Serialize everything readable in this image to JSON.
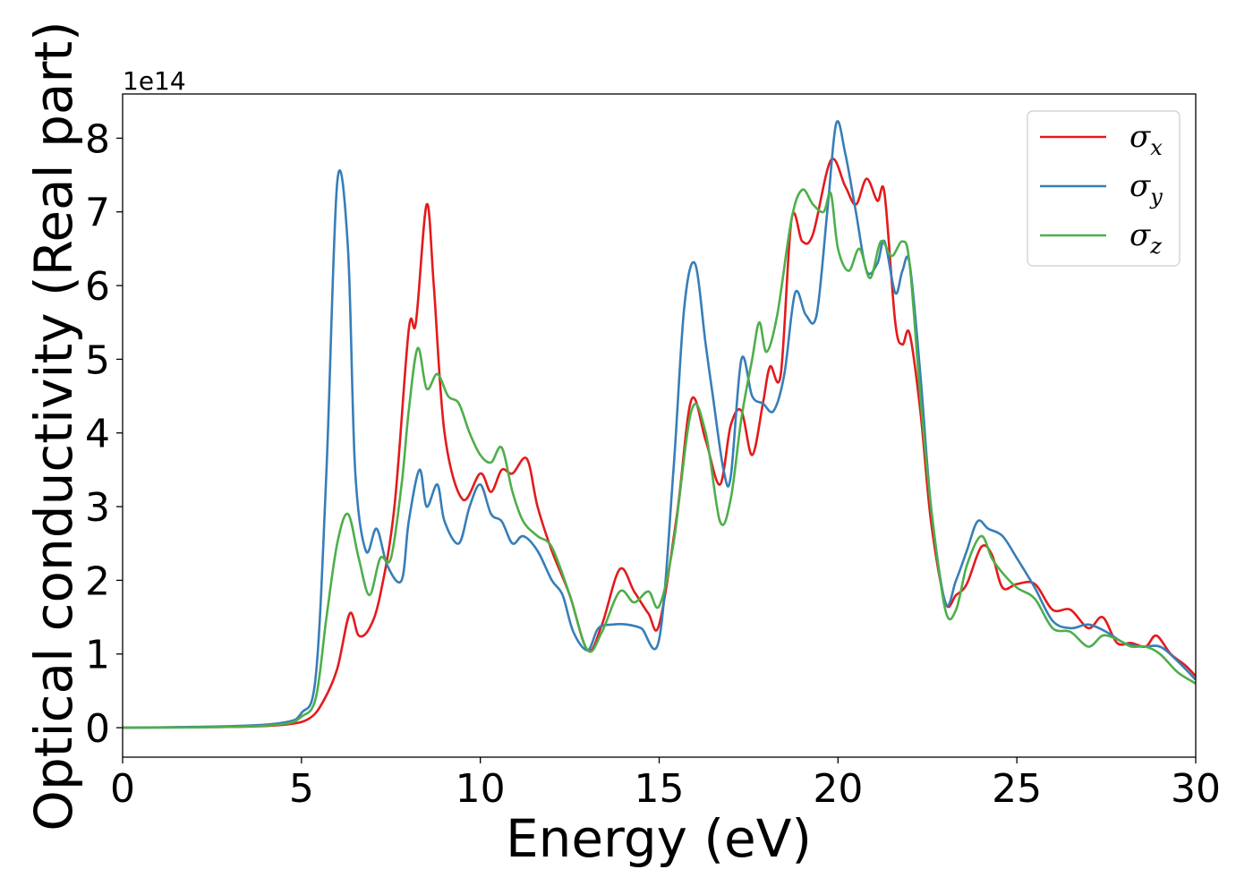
{
  "chart_data": {
    "type": "line",
    "title": "",
    "xlabel": "Energy (eV)",
    "ylabel": "Optical conductivity (Real part)",
    "y_offset_label": "1e14",
    "xlim": [
      0,
      30
    ],
    "ylim": [
      -0.4,
      8.6
    ],
    "xticks": [
      0,
      5,
      10,
      15,
      20,
      25,
      30
    ],
    "xtick_labels": [
      "0",
      "5",
      "10",
      "15",
      "20",
      "25",
      "30"
    ],
    "yticks": [
      0,
      1,
      2,
      3,
      4,
      5,
      6,
      7,
      8
    ],
    "ytick_labels": [
      "0",
      "1",
      "2",
      "3",
      "4",
      "5",
      "6",
      "7",
      "8"
    ],
    "grid": false,
    "legend_position": "top-right",
    "series": [
      {
        "name": "σx",
        "symbol": "σ",
        "subscript": "x",
        "color": "#e41a1c",
        "x": [
          0,
          3,
          4.5,
          5.2,
          5.6,
          6.0,
          6.35,
          6.6,
          6.9,
          7.2,
          7.6,
          8.0,
          8.2,
          8.5,
          8.7,
          9.0,
          9.5,
          10.0,
          10.3,
          10.6,
          10.9,
          11.3,
          11.6,
          12.0,
          12.5,
          13.0,
          13.4,
          13.9,
          14.3,
          14.7,
          15.0,
          15.5,
          15.9,
          16.3,
          16.7,
          17.0,
          17.3,
          17.6,
          17.9,
          18.1,
          18.4,
          18.7,
          19.0,
          19.3,
          19.8,
          20.2,
          20.5,
          20.8,
          21.1,
          21.3,
          21.6,
          21.8,
          22.0,
          22.3,
          22.6,
          23.0,
          23.3,
          23.6,
          24.0,
          24.3,
          24.6,
          25.0,
          25.5,
          26.0,
          26.5,
          27.0,
          27.4,
          27.8,
          28.2,
          28.6,
          28.9,
          29.3,
          29.7,
          30.0
        ],
        "y": [
          0.0,
          0.01,
          0.04,
          0.12,
          0.35,
          0.8,
          1.55,
          1.25,
          1.35,
          1.8,
          3.0,
          5.4,
          5.5,
          7.1,
          6.0,
          4.0,
          3.1,
          3.45,
          3.2,
          3.5,
          3.45,
          3.65,
          3.0,
          2.4,
          1.8,
          1.05,
          1.4,
          2.15,
          1.85,
          1.55,
          1.4,
          2.9,
          4.45,
          3.9,
          3.3,
          4.1,
          4.3,
          3.7,
          4.4,
          4.9,
          4.8,
          6.9,
          6.6,
          6.7,
          7.7,
          7.35,
          7.1,
          7.45,
          7.15,
          7.25,
          5.5,
          5.2,
          5.35,
          4.3,
          2.8,
          1.7,
          1.8,
          1.95,
          2.45,
          2.35,
          1.9,
          1.95,
          1.95,
          1.6,
          1.6,
          1.35,
          1.5,
          1.15,
          1.15,
          1.1,
          1.25,
          1.0,
          0.85,
          0.7
        ]
      },
      {
        "name": "σy",
        "symbol": "σ",
        "subscript": "y",
        "color": "#377eb8",
        "x": [
          0,
          3,
          4.5,
          5.0,
          5.4,
          5.7,
          6.0,
          6.3,
          6.5,
          6.8,
          7.1,
          7.4,
          7.8,
          8.0,
          8.3,
          8.5,
          8.8,
          9.0,
          9.4,
          9.7,
          10.0,
          10.3,
          10.6,
          10.9,
          11.2,
          11.6,
          12.0,
          12.3,
          12.6,
          13.0,
          13.3,
          13.7,
          14.1,
          14.5,
          15.0,
          15.4,
          15.7,
          16.0,
          16.3,
          16.5,
          16.8,
          17.0,
          17.3,
          17.6,
          17.9,
          18.2,
          18.5,
          18.8,
          19.1,
          19.4,
          19.7,
          19.95,
          20.2,
          20.5,
          20.8,
          21.1,
          21.3,
          21.6,
          21.8,
          22.0,
          22.3,
          22.6,
          23.0,
          23.3,
          23.6,
          23.9,
          24.2,
          24.6,
          25.0,
          25.5,
          26.0,
          26.5,
          27.0,
          27.5,
          28.0,
          28.5,
          29.0,
          29.5,
          30.0
        ],
        "y": [
          0.0,
          0.02,
          0.07,
          0.2,
          0.7,
          3.5,
          7.4,
          6.5,
          3.5,
          2.4,
          2.7,
          2.2,
          2.0,
          2.8,
          3.5,
          3.0,
          3.3,
          2.8,
          2.5,
          3.0,
          3.3,
          2.9,
          2.8,
          2.5,
          2.6,
          2.4,
          2.0,
          1.8,
          1.3,
          1.05,
          1.35,
          1.4,
          1.4,
          1.35,
          1.2,
          3.5,
          5.7,
          6.3,
          5.2,
          4.5,
          3.5,
          3.4,
          5.0,
          4.5,
          4.4,
          4.3,
          4.8,
          5.9,
          5.6,
          5.6,
          7.0,
          8.2,
          7.8,
          7.0,
          6.2,
          6.3,
          6.6,
          5.9,
          6.2,
          6.3,
          4.8,
          3.0,
          1.7,
          2.0,
          2.4,
          2.8,
          2.7,
          2.6,
          2.3,
          1.9,
          1.45,
          1.35,
          1.4,
          1.3,
          1.15,
          1.1,
          1.1,
          0.9,
          0.65
        ]
      },
      {
        "name": "σz",
        "symbol": "σ",
        "subscript": "z",
        "color": "#4daf4a",
        "x": [
          0,
          3,
          4.5,
          5.0,
          5.4,
          5.7,
          6.0,
          6.3,
          6.6,
          6.9,
          7.2,
          7.5,
          7.8,
          8.0,
          8.25,
          8.5,
          8.8,
          9.1,
          9.4,
          9.7,
          10.0,
          10.3,
          10.6,
          10.9,
          11.2,
          11.6,
          12.0,
          12.5,
          13.0,
          13.4,
          13.9,
          14.3,
          14.7,
          15.0,
          15.4,
          15.9,
          16.3,
          16.7,
          17.0,
          17.3,
          17.6,
          17.8,
          18.0,
          18.3,
          18.7,
          19.0,
          19.3,
          19.6,
          19.8,
          20.0,
          20.3,
          20.6,
          20.9,
          21.2,
          21.5,
          21.8,
          22.0,
          22.3,
          22.6,
          23.0,
          23.3,
          23.6,
          24.0,
          24.3,
          24.6,
          25.0,
          25.5,
          26.0,
          26.5,
          27.0,
          27.4,
          27.8,
          28.2,
          28.6,
          29.0,
          29.5,
          30.0
        ],
        "y": [
          0.0,
          0.01,
          0.05,
          0.15,
          0.4,
          1.5,
          2.5,
          2.9,
          2.3,
          1.8,
          2.3,
          2.3,
          3.3,
          4.3,
          5.15,
          4.6,
          4.8,
          4.5,
          4.4,
          4.0,
          3.7,
          3.6,
          3.8,
          3.2,
          2.8,
          2.6,
          2.45,
          1.8,
          1.05,
          1.3,
          1.85,
          1.7,
          1.85,
          1.65,
          2.5,
          4.3,
          4.0,
          2.8,
          3.1,
          4.2,
          5.0,
          5.5,
          5.1,
          5.6,
          6.9,
          7.3,
          7.1,
          7.0,
          7.25,
          6.5,
          6.2,
          6.5,
          6.1,
          6.6,
          6.4,
          6.6,
          6.3,
          4.5,
          3.0,
          1.6,
          1.6,
          2.2,
          2.6,
          2.3,
          2.1,
          1.9,
          1.75,
          1.35,
          1.3,
          1.1,
          1.25,
          1.2,
          1.1,
          1.1,
          1.0,
          0.75,
          0.6
        ]
      }
    ]
  }
}
